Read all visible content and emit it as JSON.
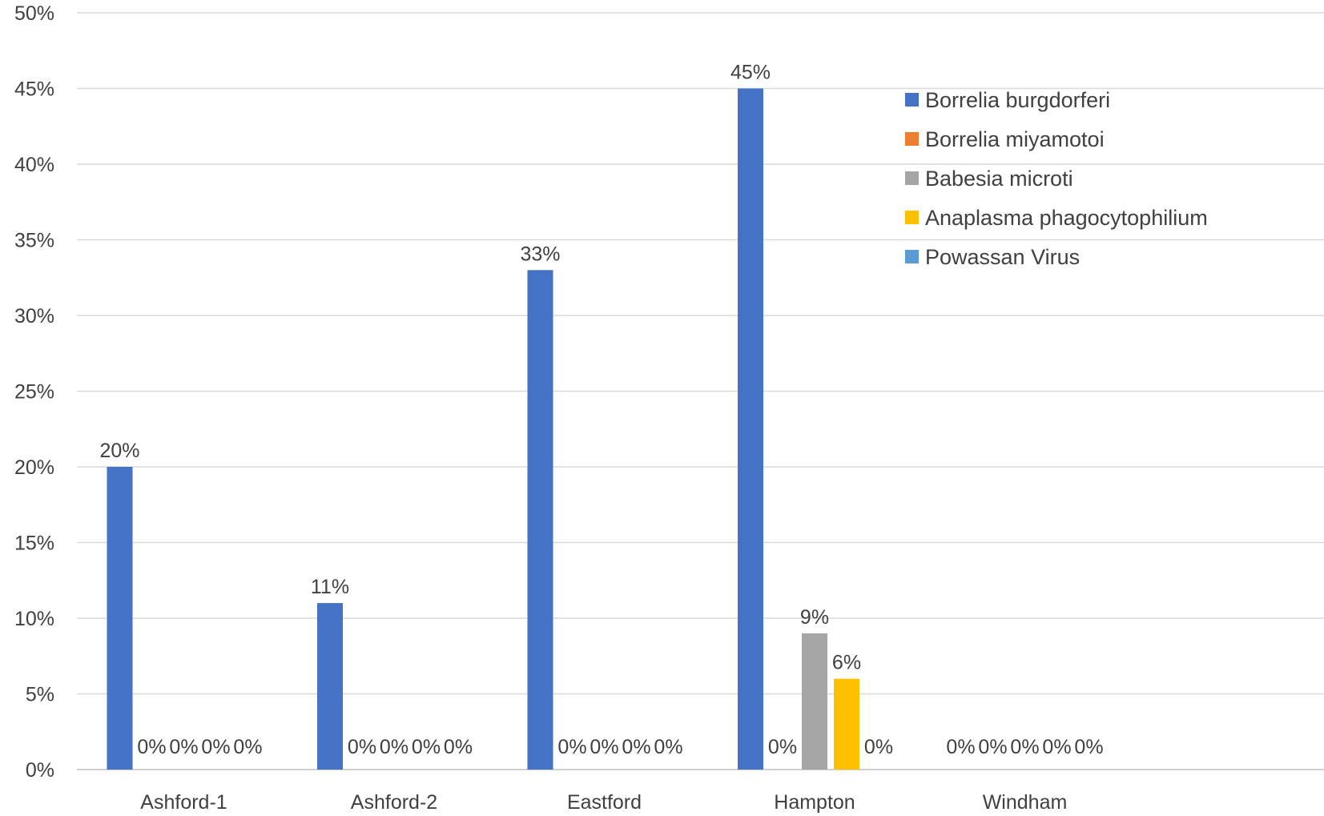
{
  "chart_data": {
    "type": "bar",
    "title": "",
    "xlabel": "",
    "ylabel": "",
    "ylim": [
      0,
      50
    ],
    "ytick_step": 5,
    "ytick_format": "percent",
    "grid": true,
    "legend_position": "top-right",
    "categories": [
      "Ashford-1",
      "Ashford-2",
      "Eastford",
      "Hampton",
      "Windham"
    ],
    "series": [
      {
        "name": "Borrelia burgdorferi",
        "color": "#4472C4",
        "values": [
          20,
          11,
          33,
          45,
          0
        ]
      },
      {
        "name": "Borrelia miyamotoi",
        "color": "#ED7D31",
        "values": [
          0,
          0,
          0,
          0,
          0
        ]
      },
      {
        "name": "Babesia microti",
        "color": "#A5A5A5",
        "values": [
          0,
          0,
          0,
          9,
          0
        ]
      },
      {
        "name": "Anaplasma phagocytophilium",
        "color": "#FFC000",
        "values": [
          0,
          0,
          0,
          6,
          0
        ]
      },
      {
        "name": "Powassan Virus",
        "color": "#5B9BD5",
        "values": [
          0,
          0,
          0,
          0,
          0
        ]
      }
    ],
    "data_labels": true,
    "data_label_format": "percent"
  }
}
